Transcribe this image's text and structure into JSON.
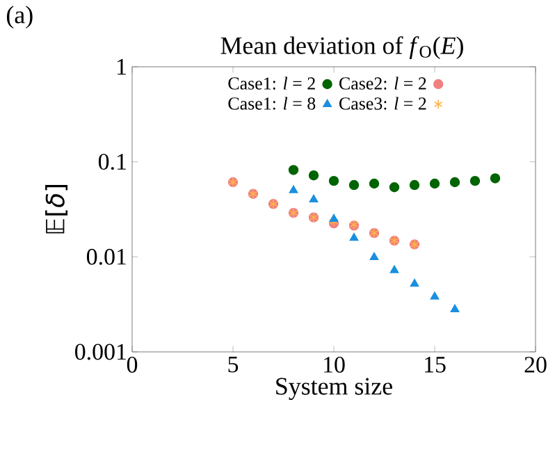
{
  "chart_data": {
    "type": "scatter",
    "title": "Mean deviation of *f*$_{O}$(*E*)",
    "xlabel": "System size",
    "ylabel": "𝔼[*δ*]",
    "annotations": [
      "(a)"
    ],
    "log": "y",
    "xlim": [
      0,
      20
    ],
    "ylim": [
      0.001,
      1
    ],
    "xticks": [
      0,
      5,
      10,
      15,
      20
    ],
    "yticks": [
      0.001,
      0.01,
      0.1,
      1
    ],
    "legend": "top",
    "grid": false,
    "series": [
      {
        "name": "Case1: *l* = 2",
        "color": "#006400",
        "marker": "circle",
        "x": [
          8,
          9,
          10,
          11,
          12,
          13,
          14,
          15,
          16,
          17,
          18
        ],
        "values": [
          0.082,
          0.072,
          0.063,
          0.057,
          0.059,
          0.054,
          0.057,
          0.059,
          0.061,
          0.063,
          0.067
        ]
      },
      {
        "name": "Case1: *l* = 8",
        "color": "#1a8fe0",
        "marker": "triangle",
        "x": [
          8,
          9,
          10,
          11,
          12,
          13,
          14,
          15,
          16
        ],
        "values": [
          0.05,
          0.04,
          0.025,
          0.0158,
          0.0099,
          0.0072,
          0.0052,
          0.0038,
          0.0028
        ]
      },
      {
        "name": "Case2: *l* = 2",
        "color": "#f08080",
        "marker": "circle",
        "x": [
          5,
          6,
          7,
          8,
          9,
          10,
          11,
          12,
          13,
          14
        ],
        "values": [
          0.061,
          0.046,
          0.036,
          0.029,
          0.026,
          0.0225,
          0.0213,
          0.0178,
          0.0148,
          0.0135
        ]
      },
      {
        "name": "Case3: *l* = 2",
        "color": "#ffb347",
        "marker": "cross",
        "x": [
          5,
          6,
          7,
          8,
          9,
          10,
          11,
          12,
          13,
          14
        ],
        "values": [
          0.061,
          0.046,
          0.036,
          0.029,
          0.026,
          0.0235,
          0.0218,
          0.0178,
          0.0148,
          0.0135
        ]
      }
    ]
  }
}
